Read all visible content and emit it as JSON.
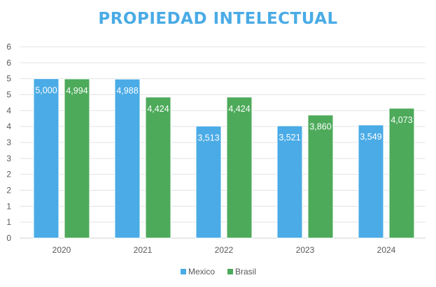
{
  "chart_data": {
    "type": "bar",
    "title": "PROPIEDAD INTELECTUAL",
    "xlabel": "",
    "ylabel": "",
    "categories": [
      "2020",
      "2021",
      "2022",
      "2023",
      "2024"
    ],
    "series": [
      {
        "name": "Mexico",
        "color": "#4aabe6",
        "values": [
          5.0,
          4.988,
          3.513,
          3.521,
          3.549
        ],
        "labels": [
          "5,000",
          "4,988",
          "3,513",
          "3,521",
          "3,549"
        ]
      },
      {
        "name": "Brasil",
        "color": "#4daa5a",
        "values": [
          4.994,
          4.424,
          4.424,
          3.86,
          4.073
        ],
        "labels": [
          "4,994",
          "4,424",
          "4,424",
          "3,860",
          "4,073"
        ]
      }
    ],
    "ylim": [
      0,
      6
    ],
    "y_step": 0.5,
    "y_tick_labels": [
      "0",
      "1",
      "1",
      "2",
      "2",
      "3",
      "3",
      "4",
      "4",
      "5",
      "5",
      "6",
      "6"
    ],
    "grid": true,
    "legend_position": "bottom"
  }
}
